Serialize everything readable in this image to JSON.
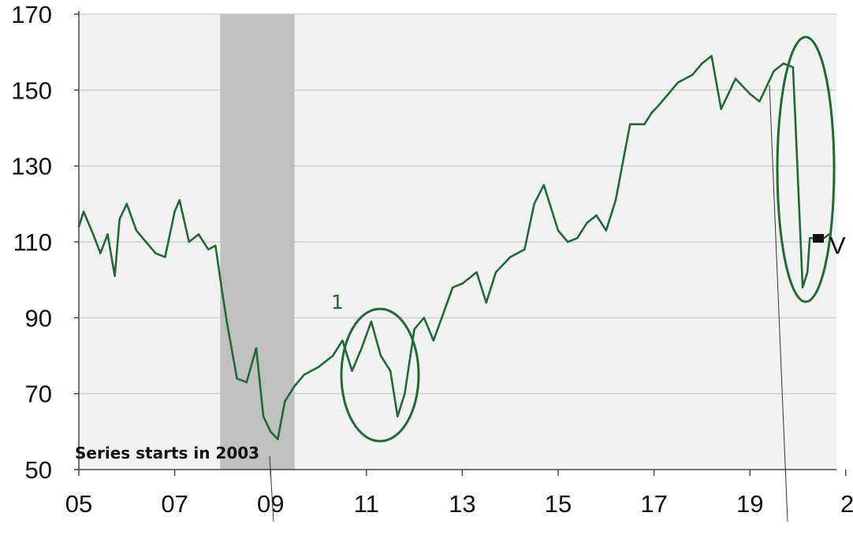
{
  "chart_data": {
    "type": "line",
    "title": "",
    "xlabel": "",
    "ylabel": "",
    "xlim": [
      2005.0,
      2022.0
    ],
    "ylim": [
      50,
      170
    ],
    "yticks": [
      50,
      70,
      90,
      110,
      130,
      150,
      170
    ],
    "ytick_labels": [
      "50",
      "70",
      "90",
      "110",
      "130",
      "150",
      "170"
    ],
    "xtick_positions": [
      2005,
      2007,
      2009,
      2011,
      2013,
      2015,
      2017,
      2019,
      2021
    ],
    "xtick_labels": [
      "05",
      "07",
      "09",
      "11",
      "13",
      "15",
      "17",
      "19",
      "2"
    ],
    "grid": true,
    "recession_band": [
      2007.95,
      2009.5
    ],
    "colors": {
      "line": "#1e6b35",
      "band": "#c0c0c0",
      "plot_bg": "#f2f2f2",
      "grid": "#d0d0d0"
    },
    "series": [
      {
        "name": "",
        "x": [
          2005.0,
          2005.1,
          2005.3,
          2005.45,
          2005.6,
          2005.75,
          2005.85,
          2006.0,
          2006.2,
          2006.4,
          2006.6,
          2006.8,
          2007.0,
          2007.1,
          2007.3,
          2007.5,
          2007.7,
          2007.85,
          2008.0,
          2008.1,
          2008.3,
          2008.5,
          2008.7,
          2008.85,
          2009.0,
          2009.15,
          2009.3,
          2009.5,
          2009.7,
          2010.0,
          2010.3,
          2010.5,
          2010.7,
          2010.9,
          2011.1,
          2011.3,
          2011.5,
          2011.65,
          2011.8,
          2012.0,
          2012.2,
          2012.4,
          2012.6,
          2012.8,
          2013.0,
          2013.3,
          2013.5,
          2013.7,
          2014.0,
          2014.3,
          2014.5,
          2014.7,
          2015.0,
          2015.2,
          2015.4,
          2015.6,
          2015.8,
          2016.0,
          2016.2,
          2016.5,
          2016.8,
          2016.95,
          2017.1,
          2017.5,
          2017.8,
          2018.0,
          2018.2,
          2018.4,
          2018.7,
          2018.85,
          2019.0,
          2019.2,
          2019.5,
          2019.7,
          2019.9,
          2020.05,
          2020.1,
          2020.15,
          2020.2,
          2020.25,
          2020.35,
          2020.45,
          2020.55,
          2020.65
        ],
        "values": [
          114,
          118,
          112,
          107,
          112,
          101,
          116,
          120,
          113,
          110,
          107,
          106,
          118,
          121,
          110,
          112,
          108,
          109,
          96,
          88,
          74,
          73,
          82,
          64,
          60,
          58,
          68,
          72,
          75,
          77,
          80,
          84,
          76,
          82,
          89,
          80,
          76,
          64,
          70,
          87,
          90,
          84,
          91,
          98,
          99,
          102,
          94,
          102,
          106,
          108,
          120,
          125,
          113,
          110,
          111,
          115,
          117,
          113,
          121,
          141,
          141,
          144,
          146,
          152,
          154,
          157,
          159,
          145,
          153,
          151,
          149,
          147,
          155,
          157,
          156,
          113,
          98,
          100,
          102,
          111,
          111,
          111,
          111,
          112
        ]
      }
    ]
  },
  "annotations": {
    "footnote": "Series starts in 2003",
    "marker_label": "1",
    "edge_glyph": "V"
  }
}
